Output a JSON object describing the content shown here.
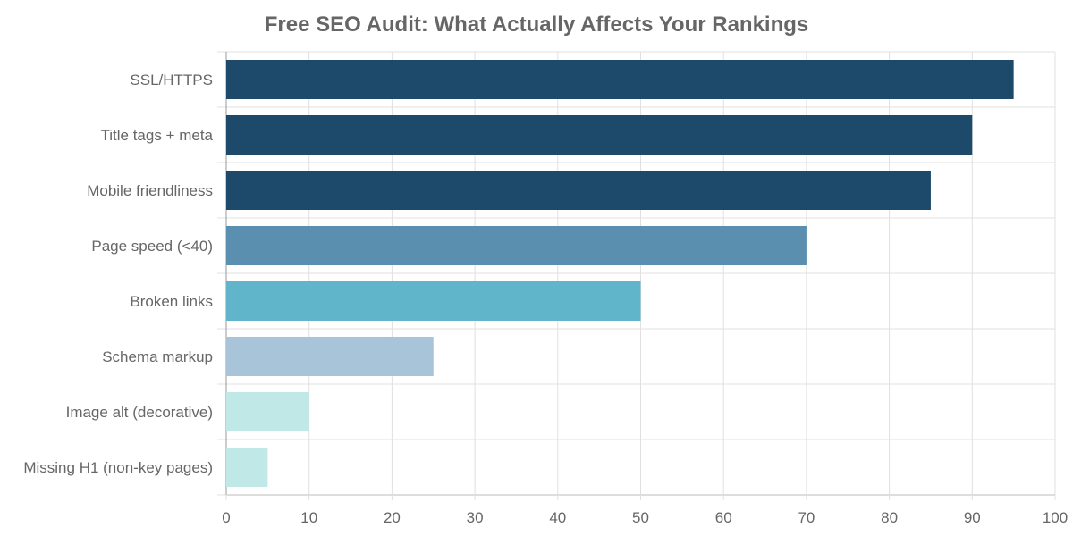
{
  "chart_data": {
    "type": "bar",
    "orientation": "horizontal",
    "title": "Free SEO Audit: What Actually Affects Your Rankings",
    "xlabel": "",
    "ylabel": "",
    "categories": [
      "SSL/HTTPS",
      "Title tags + meta",
      "Mobile friendliness",
      "Page speed (<40)",
      "Broken links",
      "Schema markup",
      "Image alt (decorative)",
      "Missing H1 (non-key pages)"
    ],
    "values": [
      95,
      90,
      85,
      70,
      50,
      25,
      10,
      5
    ],
    "colors": [
      "#1d4a6a",
      "#1d4a6a",
      "#1d4a6a",
      "#5a8faf",
      "#61b5cb",
      "#a8c4d8",
      "#bfe8e7",
      "#bfe8e7"
    ],
    "xlim": [
      0,
      100
    ],
    "xticks": [
      "0",
      "10",
      "20",
      "30",
      "40",
      "50",
      "60",
      "70",
      "80",
      "90",
      "100"
    ],
    "grid": true,
    "legend": "none"
  }
}
